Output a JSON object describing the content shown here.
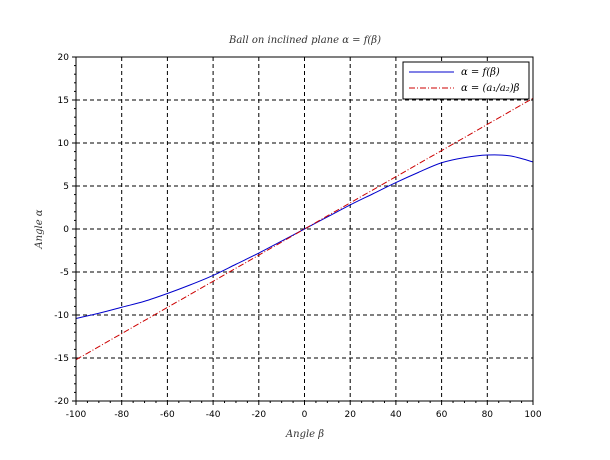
{
  "chart_data": {
    "type": "line",
    "title": "Ball on inclined plane α = f(β)",
    "xlabel": "Angle β",
    "ylabel": "Angle α",
    "xlim": [
      -100,
      100
    ],
    "ylim": [
      -20,
      20
    ],
    "xticks": [
      "-100",
      "-80",
      "-60",
      "-40",
      "-20",
      "0",
      "20",
      "40",
      "60",
      "80",
      "100"
    ],
    "yticks": [
      "20",
      "15",
      "10",
      "5",
      "0",
      "-5",
      "-10",
      "-15",
      "-20"
    ],
    "grid": true,
    "legend_position": "top-right",
    "series": [
      {
        "name": "α = f(β)",
        "color": "#0000cc",
        "dash": "solid",
        "x": [
          -100,
          -90,
          -80,
          -70,
          -60,
          -50,
          -40,
          -30,
          -20,
          -10,
          0,
          10,
          20,
          30,
          40,
          50,
          60,
          70,
          80,
          90,
          100
        ],
        "y": [
          -10.4,
          -9.8,
          -9.1,
          -8.4,
          -7.5,
          -6.5,
          -5.4,
          -4.1,
          -2.8,
          -1.4,
          0,
          1.4,
          2.8,
          4.1,
          5.4,
          6.6,
          7.7,
          8.3,
          8.6,
          8.5,
          7.8
        ]
      },
      {
        "name": "α = (a₁/a₂)β",
        "color": "#cc0000",
        "dash": "dashdot",
        "x": [
          -100,
          100
        ],
        "y": [
          -15.2,
          15.2
        ]
      }
    ]
  }
}
